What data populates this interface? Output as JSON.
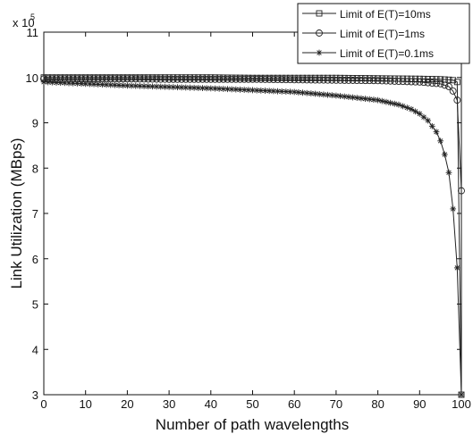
{
  "chart_data": {
    "type": "line",
    "title": "",
    "xlabel": "Number of path wavelengths",
    "ylabel": "Link Utilization (MBps)",
    "y_exponent_label": "x 10",
    "y_exponent_power": "5",
    "xlim": [
      0,
      100
    ],
    "ylim": [
      3,
      11
    ],
    "x_ticks": [
      0,
      10,
      20,
      30,
      40,
      50,
      60,
      70,
      80,
      90,
      100
    ],
    "y_ticks": [
      3,
      4,
      5,
      6,
      7,
      8,
      9,
      10,
      11
    ],
    "grid": false,
    "legend_position": "top-right",
    "series": [
      {
        "name": "Limit of E(T)=10ms",
        "marker": "square",
        "color": "#222222",
        "x": [
          0,
          10,
          20,
          30,
          40,
          50,
          60,
          70,
          80,
          90,
          95,
          97,
          98,
          99,
          100
        ],
        "y": [
          10.0,
          10.0,
          10.0,
          10.0,
          10.0,
          9.99,
          9.99,
          9.99,
          9.98,
          9.97,
          9.96,
          9.95,
          9.94,
          9.9,
          3.0
        ]
      },
      {
        "name": "Limit of E(T)=1ms",
        "marker": "circle",
        "color": "#222222",
        "x": [
          0,
          10,
          20,
          30,
          40,
          50,
          60,
          70,
          80,
          90,
          95,
          97,
          98,
          99,
          100
        ],
        "y": [
          9.97,
          9.97,
          9.97,
          9.96,
          9.96,
          9.96,
          9.95,
          9.94,
          9.93,
          9.9,
          9.86,
          9.8,
          9.7,
          9.5,
          7.5
        ]
      },
      {
        "name": "Limit of E(T)=0.1ms",
        "marker": "star",
        "color": "#222222",
        "x": [
          0,
          10,
          20,
          30,
          40,
          50,
          60,
          70,
          75,
          80,
          85,
          88,
          90,
          92,
          94,
          95,
          96,
          97,
          98,
          99,
          100
        ],
        "y": [
          9.9,
          9.86,
          9.82,
          9.79,
          9.76,
          9.72,
          9.68,
          9.6,
          9.55,
          9.5,
          9.4,
          9.3,
          9.2,
          9.05,
          8.8,
          8.6,
          8.3,
          7.9,
          7.1,
          5.8,
          3.0
        ]
      }
    ]
  }
}
